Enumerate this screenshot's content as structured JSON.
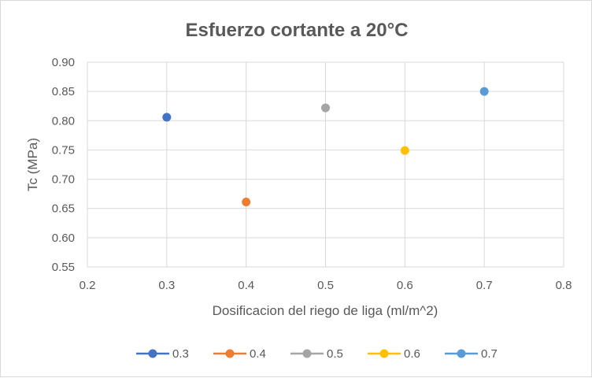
{
  "chart_data": {
    "type": "scatter",
    "title": "Esfuerzo cortante a 20°C",
    "xlabel": "Dosificacion del riego de liga  (ml/m^2)",
    "ylabel": "Tc (MPa)",
    "xlim": [
      0.2,
      0.8
    ],
    "ylim": [
      0.55,
      0.9
    ],
    "x_ticks": [
      "0.2",
      "0.3",
      "0.4",
      "0.5",
      "0.6",
      "0.7",
      "0.8"
    ],
    "y_ticks": [
      "0.55",
      "0.60",
      "0.65",
      "0.70",
      "0.75",
      "0.80",
      "0.85",
      "0.90"
    ],
    "grid": true,
    "legend_position": "bottom",
    "series": [
      {
        "name": "0.3",
        "x": [
          0.3
        ],
        "y": [
          0.806
        ],
        "color": "#4472c4"
      },
      {
        "name": "0.4",
        "x": [
          0.4
        ],
        "y": [
          0.661
        ],
        "color": "#ed7d31"
      },
      {
        "name": "0.5",
        "x": [
          0.5
        ],
        "y": [
          0.822
        ],
        "color": "#a5a5a5"
      },
      {
        "name": "0.6",
        "x": [
          0.6
        ],
        "y": [
          0.749
        ],
        "color": "#ffc000"
      },
      {
        "name": "0.7",
        "x": [
          0.7
        ],
        "y": [
          0.85
        ],
        "color": "#5b9bd5"
      }
    ]
  }
}
